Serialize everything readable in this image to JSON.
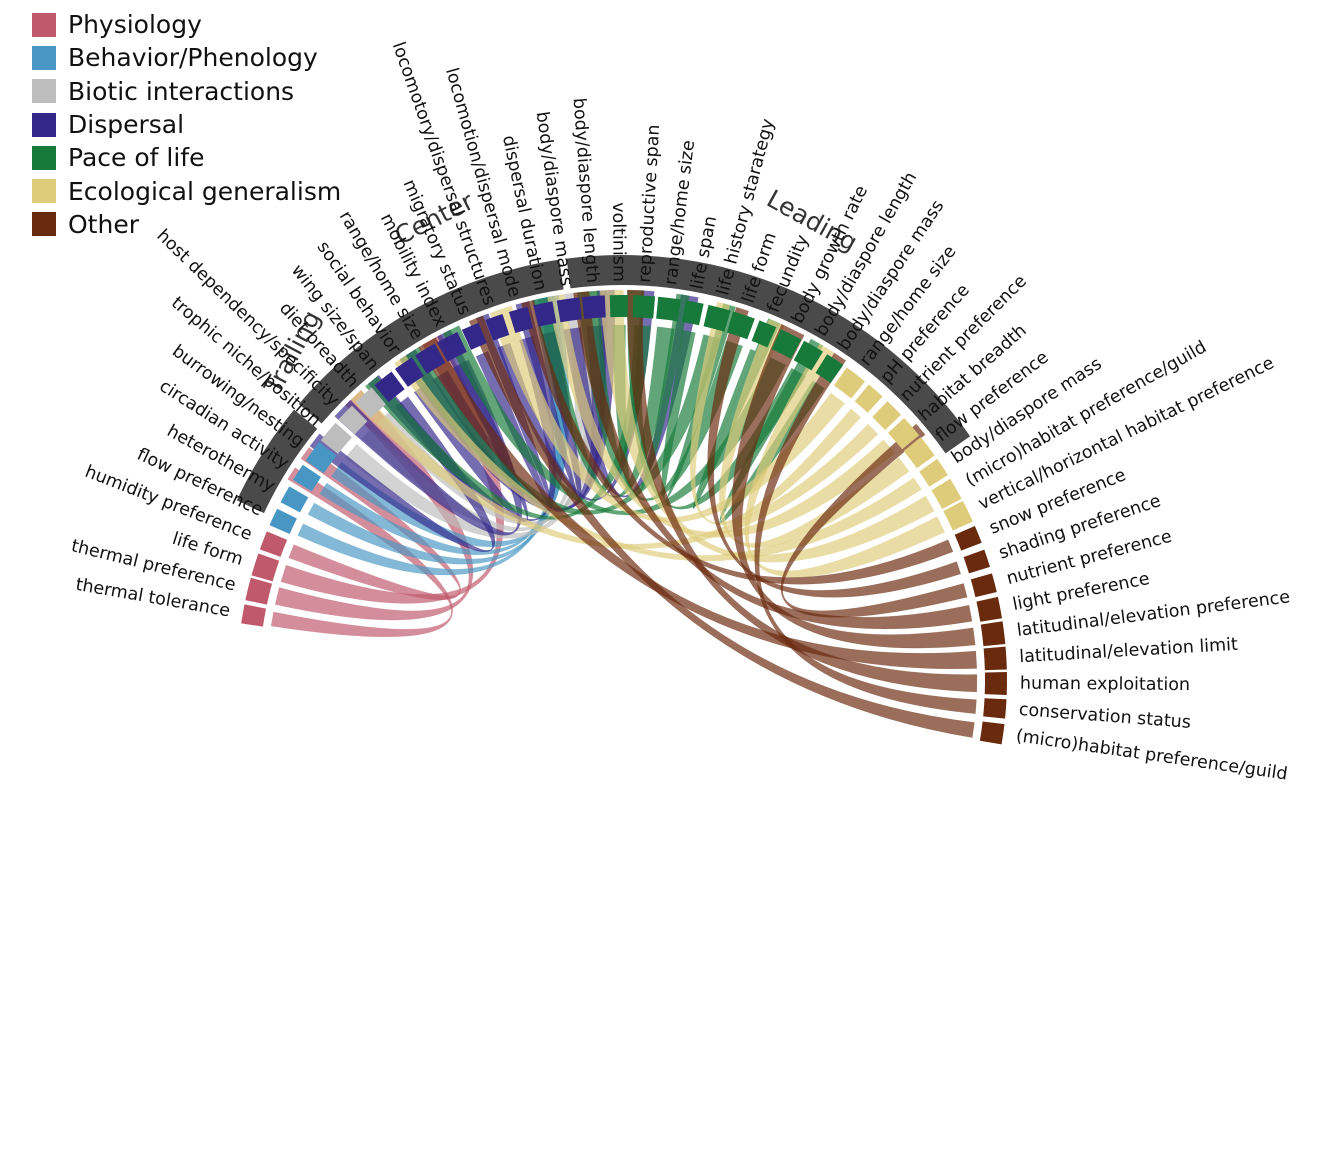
{
  "legend": [
    {
      "name": "Physiology",
      "color": "#c0596b"
    },
    {
      "name": "Behavior/Phenology",
      "color": "#4896c3"
    },
    {
      "name": "Biotic interactions",
      "color": "#bdbdbd"
    },
    {
      "name": "Dispersal",
      "color": "#33288a"
    },
    {
      "name": "Pace of life",
      "color": "#177a3a"
    },
    {
      "name": "Ecological generalism",
      "color": "#dfcc7a"
    },
    {
      "name": "Other",
      "color": "#6a2a0d"
    }
  ],
  "positions": [
    {
      "name": "Trailing"
    },
    {
      "name": "Center"
    },
    {
      "name": "Leading"
    }
  ],
  "traits": [
    {
      "label": "thermal tolerance",
      "category": "Physiology"
    },
    {
      "label": "thermal preference",
      "category": "Physiology"
    },
    {
      "label": "life form",
      "category": "Physiology"
    },
    {
      "label": "humidity preference",
      "category": "Physiology"
    },
    {
      "label": "flow preference",
      "category": "Behavior/Phenology"
    },
    {
      "label": "heterothermy",
      "category": "Behavior/Phenology"
    },
    {
      "label": "circadian activity",
      "category": "Behavior/Phenology"
    },
    {
      "label": "burrowing/nesting",
      "category": "Behavior/Phenology"
    },
    {
      "label": "trophic niche/position",
      "category": "Biotic interactions"
    },
    {
      "label": "host dependency/specificity",
      "category": "Biotic interactions"
    },
    {
      "label": "diet breadth",
      "category": "Biotic interactions"
    },
    {
      "label": "wing size/span",
      "category": "Dispersal"
    },
    {
      "label": "social behavior",
      "category": "Dispersal"
    },
    {
      "label": "range/home size",
      "category": "Dispersal"
    },
    {
      "label": "mobility index",
      "category": "Dispersal"
    },
    {
      "label": "migratory status",
      "category": "Dispersal"
    },
    {
      "label": "locomotory/dispersal structures",
      "category": "Dispersal"
    },
    {
      "label": "locomotion/dispersal mode",
      "category": "Dispersal"
    },
    {
      "label": "dispersal duration",
      "category": "Dispersal"
    },
    {
      "label": "body/diaspore mass",
      "category": "Dispersal"
    },
    {
      "label": "body/diaspore length",
      "category": "Dispersal"
    },
    {
      "label": "voltinism",
      "category": "Pace of life"
    },
    {
      "label": "reproductive span",
      "category": "Pace of life"
    },
    {
      "label": "range/home size",
      "category": "Pace of life"
    },
    {
      "label": "life span",
      "category": "Pace of life"
    },
    {
      "label": "life history starategy",
      "category": "Pace of life"
    },
    {
      "label": "life form",
      "category": "Pace of life"
    },
    {
      "label": "fecundity",
      "category": "Pace of life"
    },
    {
      "label": "body growth rate",
      "category": "Pace of life"
    },
    {
      "label": "body/diaspore length",
      "category": "Pace of life"
    },
    {
      "label": "body/diaspore mass",
      "category": "Pace of life"
    },
    {
      "label": "range/home size",
      "category": "Ecological generalism"
    },
    {
      "label": "pH preference",
      "category": "Ecological generalism"
    },
    {
      "label": "nutrient preference",
      "category": "Ecological generalism"
    },
    {
      "label": "habitat breadth",
      "category": "Ecological generalism"
    },
    {
      "label": "flow preference",
      "category": "Ecological generalism"
    },
    {
      "label": "body/diaspore mass",
      "category": "Ecological generalism"
    },
    {
      "label": "(micro)habitat preference/guild",
      "category": "Ecological generalism"
    },
    {
      "label": "vertical/horizontal habitat preference",
      "category": "Ecological generalism"
    },
    {
      "label": "snow preference",
      "category": "Other"
    },
    {
      "label": "shading preference",
      "category": "Other"
    },
    {
      "label": "nutrient preference",
      "category": "Other"
    },
    {
      "label": "light preference",
      "category": "Other"
    },
    {
      "label": "latitudinal/elevation preference",
      "category": "Other"
    },
    {
      "label": "latitudinal/elevation limit",
      "category": "Other"
    },
    {
      "label": "human exploitation",
      "category": "Other"
    },
    {
      "label": "conservation status",
      "category": "Other"
    },
    {
      "label": "(micro)habitat preference/guild",
      "category": "Other"
    }
  ]
}
